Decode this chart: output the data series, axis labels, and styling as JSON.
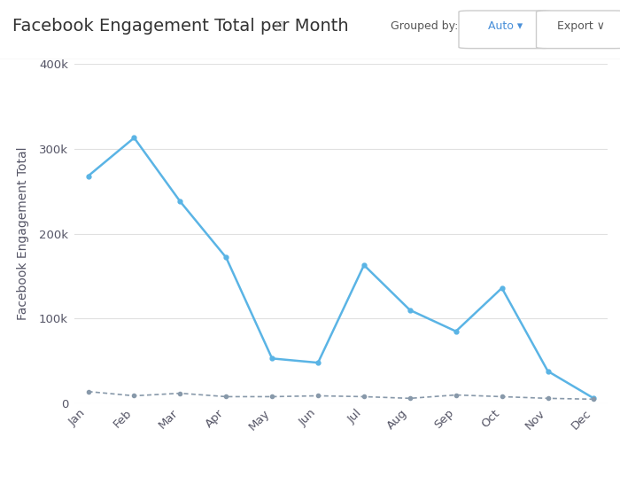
{
  "title": "Facebook Engagement Total per Month",
  "ylabel": "Facebook Engagement Total",
  "months": [
    "Jan",
    "Feb",
    "Mar",
    "Apr",
    "May",
    "Jun",
    "Jul",
    "Aug",
    "Sep",
    "Oct",
    "Nov",
    "Dec"
  ],
  "kylie": [
    268000,
    313000,
    238000,
    172000,
    53000,
    48000,
    163000,
    110000,
    85000,
    136000,
    38000,
    6000
  ],
  "competitor": [
    14000,
    9000,
    12000,
    8000,
    8000,
    9000,
    8000,
    6000,
    10000,
    8000,
    6000,
    5000
  ],
  "kylie_color": "#5ab4e5",
  "competitor_color": "#8899aa",
  "bg_color": "#ffffff",
  "grid_color": "#e0e0e0",
  "header_bg": "#ffffff",
  "ylim": [
    0,
    400000
  ],
  "yticks": [
    0,
    100000,
    200000,
    300000,
    400000
  ],
  "title_fontsize": 14,
  "axis_label_fontsize": 10,
  "tick_fontsize": 9.5,
  "legend_fontsize": 10,
  "header_text_color": "#333333",
  "ui_color": "#4a90d9",
  "axis_color": "#555566"
}
